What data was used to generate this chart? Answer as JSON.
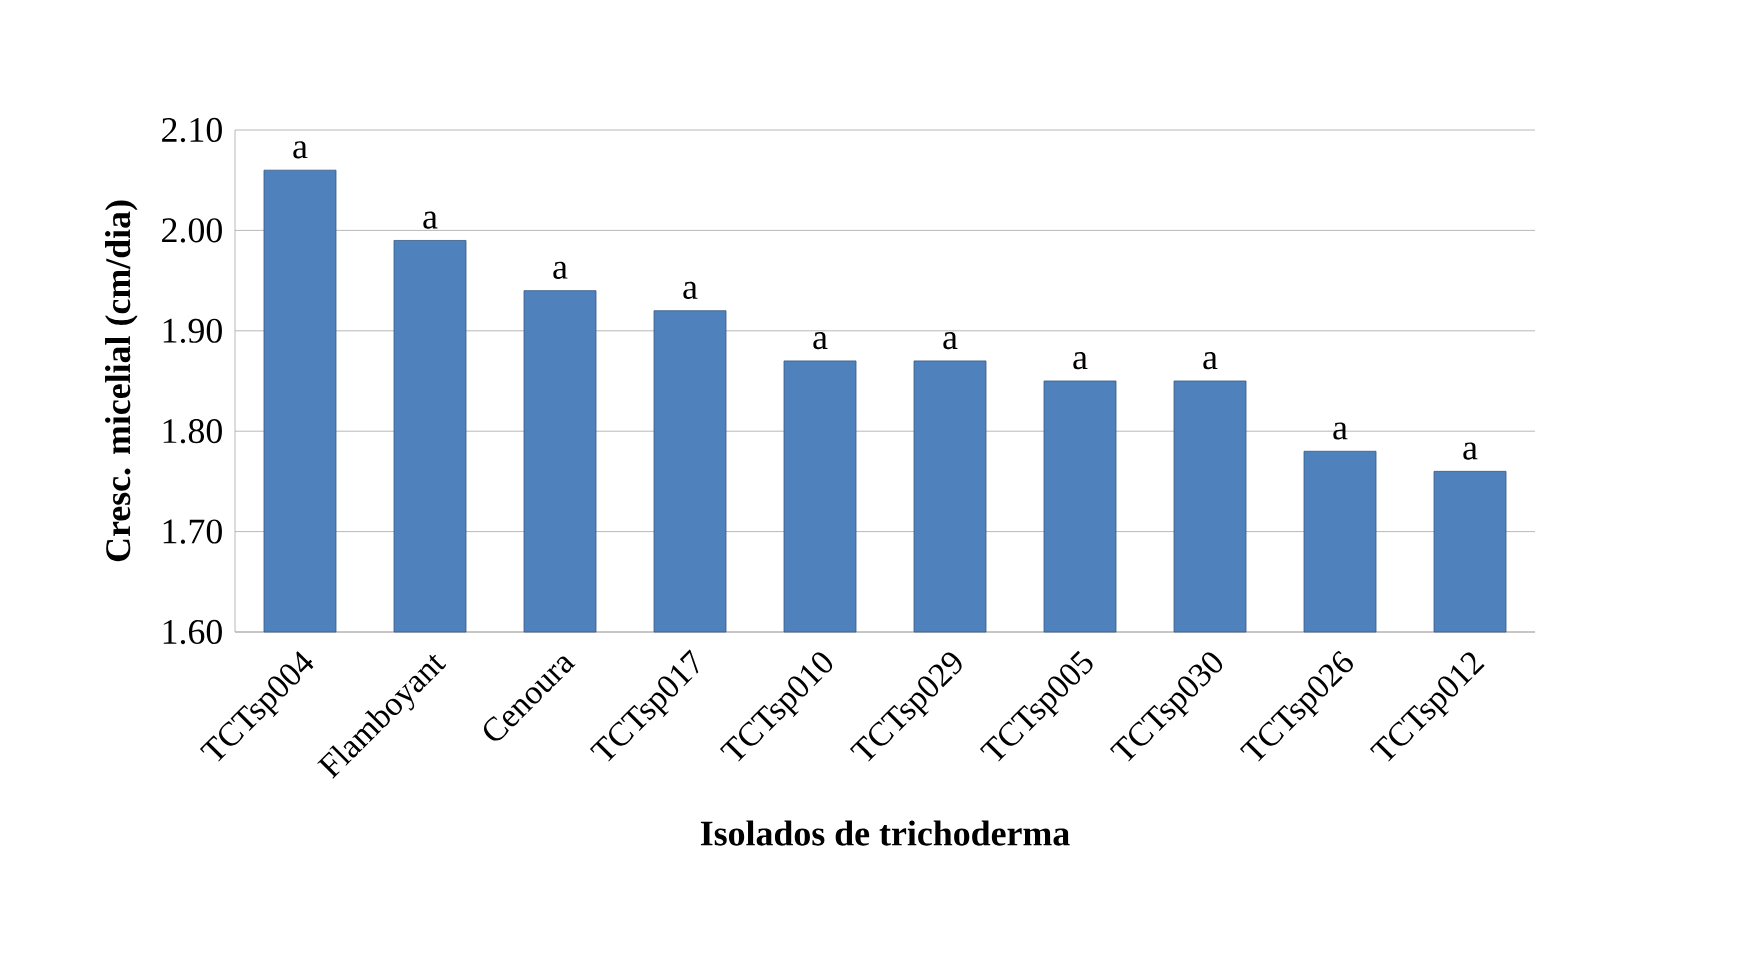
{
  "chart_data": {
    "type": "bar",
    "xlabel": "Isolados de trichoderma",
    "ylabel": "Cresc. micelial (cm/dia)",
    "categories": [
      "TCTsp004",
      "Flamboyant",
      "Cenoura",
      "TCTsp017",
      "TCTsp010",
      "TCTsp029",
      "TCTsp005",
      "TCTsp030",
      "TCTsp026",
      "TCTsp012"
    ],
    "values": [
      2.06,
      1.99,
      1.94,
      1.92,
      1.87,
      1.87,
      1.85,
      1.85,
      1.78,
      1.76
    ],
    "value_labels": [
      "a",
      "a",
      "a",
      "a",
      "a",
      "a",
      "a",
      "a",
      "a",
      "a"
    ],
    "color": "#4f81bd",
    "ylim": [
      1.6,
      2.1
    ],
    "yticks": [
      {
        "value": 1.6,
        "label": "1.60"
      },
      {
        "value": 1.7,
        "label": "1.70"
      },
      {
        "value": 1.8,
        "label": "1.80"
      },
      {
        "value": 1.9,
        "label": "1.90"
      },
      {
        "value": 2.0,
        "label": "2.00"
      },
      {
        "value": 2.1,
        "label": "2.10"
      }
    ],
    "grid": "y"
  }
}
